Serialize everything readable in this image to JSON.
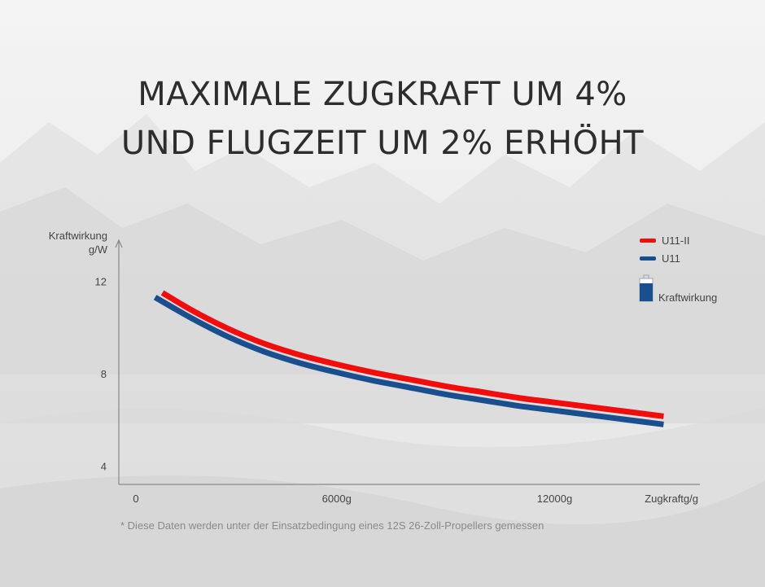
{
  "headline": {
    "line1": "MAXIMALE ZUGKRAFT UM 4%",
    "line2": "UND FLUGZEIT UM 2% ERHÖHT"
  },
  "colors": {
    "u11_ii": "#f20c0c",
    "u11": "#1a4f8f",
    "axis": "#888888",
    "text": "#444444"
  },
  "chart_data": {
    "type": "line",
    "ylabel_line1": "Kraftwirkung",
    "ylabel_line2": "g/W",
    "xlabel": "Zugkraftg/g",
    "xlim": [
      0,
      16000
    ],
    "ylim": [
      3.2,
      13.6
    ],
    "xticks": [
      {
        "value": 0,
        "label": "0"
      },
      {
        "value": 6000,
        "label": "6000g"
      },
      {
        "value": 12000,
        "label": "12000g"
      }
    ],
    "yticks": [
      {
        "value": 4,
        "label": "4"
      },
      {
        "value": 8,
        "label": "8"
      },
      {
        "value": 12,
        "label": "12"
      }
    ],
    "legend_position": "top-right",
    "series": [
      {
        "name": "U11-II",
        "color": "#f20c0c",
        "x": [
          1200,
          2000,
          3000,
          4000,
          5000,
          6000,
          7000,
          8000,
          9000,
          10000,
          11000,
          12000,
          13000,
          14000,
          15000
        ],
        "y": [
          11.5,
          10.75,
          9.95,
          9.3,
          8.8,
          8.4,
          8.05,
          7.75,
          7.45,
          7.2,
          6.95,
          6.75,
          6.55,
          6.35,
          6.15
        ]
      },
      {
        "name": "U11",
        "color": "#1a4f8f",
        "x": [
          1000,
          2000,
          3000,
          4000,
          5000,
          6000,
          7000,
          8000,
          9000,
          10000,
          11000,
          12000,
          13000,
          14000,
          15000
        ],
        "y": [
          11.3,
          10.4,
          9.6,
          8.95,
          8.45,
          8.05,
          7.7,
          7.4,
          7.1,
          6.85,
          6.6,
          6.4,
          6.2,
          6.0,
          5.8
        ]
      }
    ],
    "legend": {
      "u11_ii": "U11-II",
      "u11": "U11",
      "kraftwirkung": "Kraftwirkung"
    },
    "footnote": "* Diese Daten werden unter der Einsatzbedingung eines 12S 26-Zoll-Propellers gemessen"
  }
}
